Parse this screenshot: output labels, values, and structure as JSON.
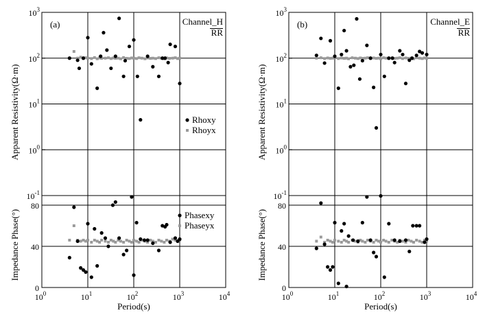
{
  "figure": {
    "xlabel": "Period(s)",
    "x_ticks": [
      {
        "value": 0,
        "base": "10",
        "exp": "0"
      },
      {
        "value": 1,
        "base": "10",
        "exp": "1"
      },
      {
        "value": 2,
        "base": "10",
        "exp": "2"
      },
      {
        "value": 3,
        "base": "10",
        "exp": "3"
      },
      {
        "value": 4,
        "base": "10",
        "exp": "4"
      }
    ],
    "res_ticks": [
      {
        "value": -1,
        "base": "10",
        "exp": "-1"
      },
      {
        "value": 0,
        "base": "10",
        "exp": "0"
      },
      {
        "value": 1,
        "base": "10",
        "exp": "1"
      },
      {
        "value": 2,
        "base": "10",
        "exp": "2"
      },
      {
        "value": 3,
        "base": "10",
        "exp": "3"
      }
    ],
    "phase_ticks": [
      "0",
      "40",
      "80"
    ],
    "colors": {
      "xy": "#000000",
      "yx": "#9a9a9a",
      "grid": "#000000"
    }
  },
  "chart_data": [
    {
      "type": "scatter",
      "panel_label": "(a)",
      "channel": [
        "Channel_H",
        "RR"
      ],
      "x_scale": "log",
      "xlim": [
        1,
        10000
      ],
      "subplots": [
        {
          "ylabel": "Apparent Resistivity(Ω·m)",
          "y_scale": "log",
          "ylim": [
            0.1,
            1000
          ],
          "legend": {
            "position": "center-right"
          },
          "series": [
            {
              "name": "Rhoxy",
              "marker": "circle",
              "color": "#000000",
              "x": [
                4,
                6,
                6.5,
                8,
                10,
                12,
                16,
                19,
                22,
                26,
                32,
                40,
                48,
                60,
                65,
                80,
                100,
                120,
                140,
                200,
                260,
                350,
                420,
                480,
                560,
                620,
                800,
                1000
              ],
              "y": [
                100,
                90,
                60,
                100,
                280,
                75,
                22,
                110,
                360,
                150,
                60,
                110,
                740,
                40,
                88,
                180,
                250,
                40,
                4.5,
                110,
                65,
                40,
                100,
                100,
                80,
                200,
                180,
                28
              ]
            },
            {
              "name": "Rhoyx",
              "marker": "square",
              "color": "#9a9a9a",
              "x": [
                4,
                5,
                6,
                7,
                8,
                9,
                10,
                12,
                14,
                16,
                18,
                20,
                24,
                28,
                32,
                36,
                40,
                46,
                52,
                60,
                70,
                80,
                90,
                100,
                115,
                130,
                150,
                175,
                200,
                230,
                260,
                300,
                350,
                400,
                460,
                520,
                600,
                700,
                800,
                900,
                1000
              ],
              "y": [
                100,
                140,
                100,
                105,
                98,
                102,
                100,
                98,
                103,
                97,
                101,
                99,
                100,
                102,
                98,
                101,
                99,
                100,
                97,
                103,
                99,
                98,
                101,
                100,
                98,
                102,
                100,
                97,
                101,
                99,
                100,
                98,
                102,
                100,
                97,
                101,
                99,
                100,
                102,
                98,
                100
              ]
            }
          ]
        },
        {
          "ylabel": "Impedance Phase(°)",
          "y_scale": "linear",
          "ylim": [
            0,
            90
          ],
          "legend": {
            "position": "top-right"
          },
          "series": [
            {
              "name": "Phasexy",
              "marker": "circle",
              "color": "#000000",
              "x": [
                4,
                5,
                6,
                7,
                8,
                9,
                10,
                12,
                14,
                16,
                20,
                24,
                28,
                35,
                40,
                48,
                60,
                70,
                90,
                100,
                115,
                140,
                170,
                200,
                260,
                350,
                420,
                480,
                520,
                620,
                800,
                900,
                1000
              ],
              "y": [
                29,
                78,
                45,
                19,
                17,
                15,
                62,
                10,
                57,
                21,
                53,
                48,
                40,
                80,
                83,
                48,
                32,
                36,
                88,
                12,
                63,
                47,
                46,
                46,
                43,
                36,
                60,
                59,
                61,
                44,
                48,
                45,
                47
              ]
            },
            {
              "name": "Phaseyx",
              "marker": "square",
              "color": "#9a9a9a",
              "x": [
                4,
                5,
                6,
                7,
                8,
                9,
                10,
                12,
                14,
                16,
                18,
                20,
                24,
                28,
                32,
                36,
                40,
                46,
                52,
                60,
                70,
                80,
                90,
                100,
                115,
                130,
                150,
                175,
                200,
                230,
                260,
                300,
                350,
                400,
                460,
                520,
                600,
                700,
                800,
                900,
                1000
              ],
              "y": [
                46,
                60,
                46,
                45,
                46,
                45,
                46,
                44,
                46,
                45,
                44,
                46,
                45,
                44,
                46,
                45,
                44,
                46,
                45,
                44,
                46,
                45,
                44,
                46,
                45,
                44,
                46,
                45,
                44,
                46,
                45,
                44,
                46,
                45,
                44,
                46,
                45,
                47,
                46,
                45,
                46
              ]
            }
          ]
        }
      ]
    },
    {
      "type": "scatter",
      "panel_label": "(b)",
      "channel": [
        "Channel_E",
        "RR"
      ],
      "x_scale": "log",
      "xlim": [
        1,
        10000
      ],
      "subplots": [
        {
          "ylabel": "Apparent Resistivity(Ω·m)",
          "y_scale": "log",
          "ylim": [
            0.1,
            1000
          ],
          "series": [
            {
              "name": "Rhoxy",
              "marker": "circle",
              "color": "#000000",
              "x": [
                4,
                5,
                6,
                8,
                10,
                12,
                14,
                16,
                18,
                22,
                26,
                30,
                35,
                40,
                50,
                60,
                70,
                80,
                100,
                120,
                150,
                180,
                200,
                260,
                300,
                350,
                420,
                480,
                600,
                700,
                800,
                1000
              ],
              "y": [
                115,
                270,
                78,
                240,
                110,
                22,
                120,
                400,
                145,
                65,
                70,
                720,
                35,
                88,
                190,
                100,
                23,
                3,
                120,
                40,
                100,
                100,
                80,
                145,
                120,
                28,
                90,
                100,
                115,
                140,
                130,
                120
              ]
            },
            {
              "name": "Rhoyx",
              "marker": "square",
              "color": "#9a9a9a",
              "x": [
                4,
                5,
                6,
                7,
                8,
                9,
                10,
                12,
                14,
                16,
                18,
                20,
                24,
                28,
                32,
                36,
                40,
                46,
                52,
                60,
                70,
                80,
                90,
                100,
                115,
                130,
                150,
                175,
                200,
                230,
                260,
                300,
                350,
                400,
                460,
                520,
                600,
                700,
                800,
                900,
                1000
              ],
              "y": [
                100,
                102,
                98,
                101,
                99,
                100,
                102,
                98,
                101,
                99,
                100,
                97,
                102,
                100,
                98,
                101,
                99,
                100,
                102,
                98,
                101,
                99,
                100,
                97,
                102,
                100,
                98,
                101,
                99,
                100,
                102,
                98,
                101,
                99,
                100,
                97,
                102,
                100,
                98,
                101,
                99
              ]
            }
          ]
        },
        {
          "ylabel": "Impedance Phase(°)",
          "y_scale": "linear",
          "ylim": [
            0,
            90
          ],
          "series": [
            {
              "name": "Phasexy",
              "marker": "circle",
              "color": "#000000",
              "x": [
                4,
                5,
                6,
                7,
                8,
                9,
                10,
                12,
                14,
                16,
                18,
                20,
                25,
                32,
                40,
                50,
                60,
                70,
                80,
                100,
                120,
                150,
                200,
                260,
                350,
                420,
                500,
                600,
                700,
                900,
                1000
              ],
              "y": [
                38,
                82,
                42,
                20,
                17,
                20,
                63,
                4,
                55,
                62,
                1,
                50,
                46,
                45,
                63,
                88,
                46,
                34,
                30,
                89,
                10,
                62,
                46,
                45,
                46,
                35,
                60,
                60,
                60,
                44,
                47
              ]
            },
            {
              "name": "Phaseyx",
              "marker": "square",
              "color": "#9a9a9a",
              "x": [
                4,
                5,
                6,
                7,
                8,
                9,
                10,
                12,
                14,
                16,
                18,
                20,
                24,
                28,
                32,
                36,
                40,
                46,
                52,
                60,
                70,
                80,
                90,
                100,
                115,
                130,
                150,
                175,
                200,
                230,
                260,
                300,
                350,
                400,
                460,
                520,
                600,
                700,
                800,
                900,
                1000
              ],
              "y": [
                45,
                49,
                44,
                46,
                45,
                44,
                46,
                45,
                44,
                46,
                45,
                44,
                46,
                45,
                44,
                46,
                45,
                44,
                46,
                45,
                44,
                46,
                45,
                44,
                46,
                45,
                44,
                46,
                45,
                44,
                46,
                45,
                44,
                46,
                45,
                44,
                46,
                45,
                44,
                46,
                45
              ]
            }
          ]
        }
      ]
    }
  ]
}
